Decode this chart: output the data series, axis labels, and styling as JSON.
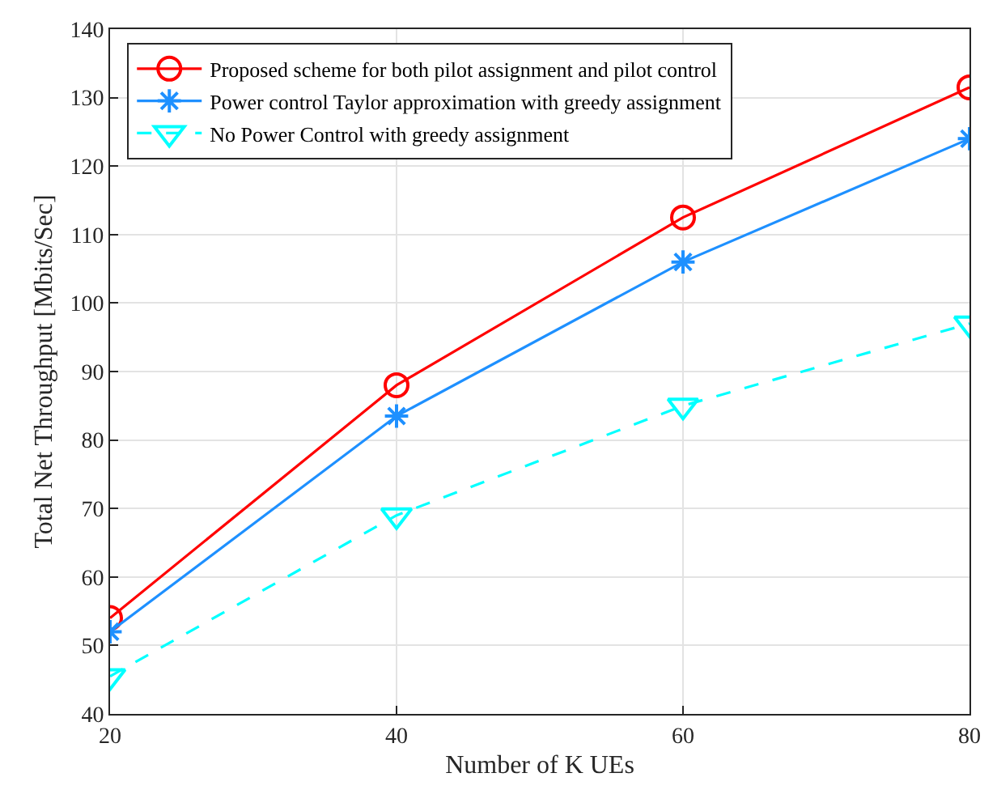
{
  "chart_data": {
    "type": "line",
    "xlabel": "Number of K UEs",
    "ylabel": "Total Net Throughput [Mbits/Sec]",
    "x": [
      20,
      40,
      60,
      80
    ],
    "xlim": [
      20,
      80
    ],
    "xticks": [
      20,
      40,
      60,
      80
    ],
    "ylim": [
      40,
      140
    ],
    "yticks": [
      40,
      50,
      60,
      70,
      80,
      90,
      100,
      110,
      120,
      130,
      140
    ],
    "grid": true,
    "legend": "top left",
    "series": [
      {
        "name": "Proposed scheme for both pilot assignment and pilot control",
        "color": "#ff0000",
        "values": [
          54,
          88,
          112.5,
          131.5
        ],
        "marker": "circle",
        "line_style": "solid"
      },
      {
        "name": "Power control Taylor approximation with greedy assignment",
        "color": "#1e90ff",
        "values": [
          52,
          83.5,
          106,
          124
        ],
        "marker": "cross",
        "line_style": "solid"
      },
      {
        "name": "No Power Control with greedy assignment",
        "color": "#00ffff",
        "values": [
          45.5,
          69,
          85,
          97
        ],
        "marker": "triangle",
        "line_style": "dashed"
      }
    ]
  }
}
